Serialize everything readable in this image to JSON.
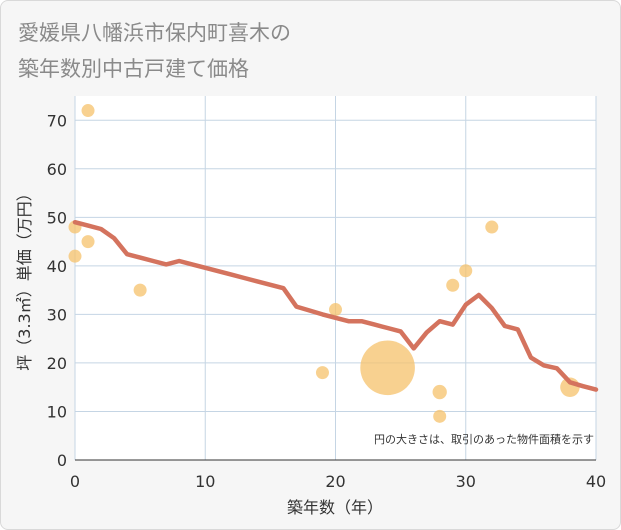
{
  "chart_data": {
    "type": "scatter",
    "title_lines": [
      "愛媛県八幡浜市保内町喜木の",
      "築年数別中古戸建て価格"
    ],
    "xlabel": "築年数（年）",
    "ylabel": "坪（3.3㎡）単価（万円）",
    "xlim": [
      0,
      40
    ],
    "ylim": [
      0,
      75
    ],
    "x_ticks": [
      0,
      10,
      20,
      30,
      40
    ],
    "y_ticks": [
      0,
      10,
      20,
      30,
      40,
      50,
      60,
      70
    ],
    "grid": true,
    "note": "円の大きさは、取引のあった物件面積を示す",
    "colors": {
      "bubble": "#f5c26b",
      "trend": "#d4735e",
      "grid": "#c5d5e4",
      "plot_bg": "#ffffff"
    },
    "points": [
      {
        "x": 0,
        "y": 48,
        "size": 1
      },
      {
        "x": 0,
        "y": 42,
        "size": 1
      },
      {
        "x": 1,
        "y": 72,
        "size": 1
      },
      {
        "x": 1,
        "y": 45,
        "size": 1
      },
      {
        "x": 5,
        "y": 35,
        "size": 1
      },
      {
        "x": 19,
        "y": 18,
        "size": 1
      },
      {
        "x": 20,
        "y": 31,
        "size": 1
      },
      {
        "x": 24,
        "y": 19,
        "size": 4.2
      },
      {
        "x": 28,
        "y": 14,
        "size": 1.1
      },
      {
        "x": 28,
        "y": 9,
        "size": 1
      },
      {
        "x": 29,
        "y": 36,
        "size": 1
      },
      {
        "x": 30,
        "y": 39,
        "size": 1
      },
      {
        "x": 32,
        "y": 48,
        "size": 1
      },
      {
        "x": 38,
        "y": 15,
        "size": 1.5
      }
    ],
    "trend": {
      "x": [
        0,
        1,
        2,
        3,
        4,
        5,
        6,
        7,
        8,
        9,
        10,
        11,
        12,
        13,
        14,
        15,
        16,
        17,
        18,
        19,
        20,
        21,
        22,
        23,
        24,
        25,
        26,
        27,
        28,
        29,
        30,
        31,
        32,
        33,
        34,
        35,
        36,
        37,
        38,
        39,
        40
      ],
      "y": [
        49,
        48.3,
        47.6,
        45.7,
        42.4,
        41.7,
        41,
        40.3,
        41,
        40.3,
        39.6,
        38.9,
        38.2,
        37.5,
        36.8,
        36.1,
        35.4,
        31.6,
        30.8,
        30,
        29.3,
        28.6,
        28.6,
        27.9,
        27.2,
        26.5,
        23,
        26.3,
        28.6,
        27.9,
        32,
        34,
        31.3,
        27.6,
        26.9,
        21.1,
        19.5,
        18.9,
        16,
        15.2,
        14.5
      ]
    }
  }
}
